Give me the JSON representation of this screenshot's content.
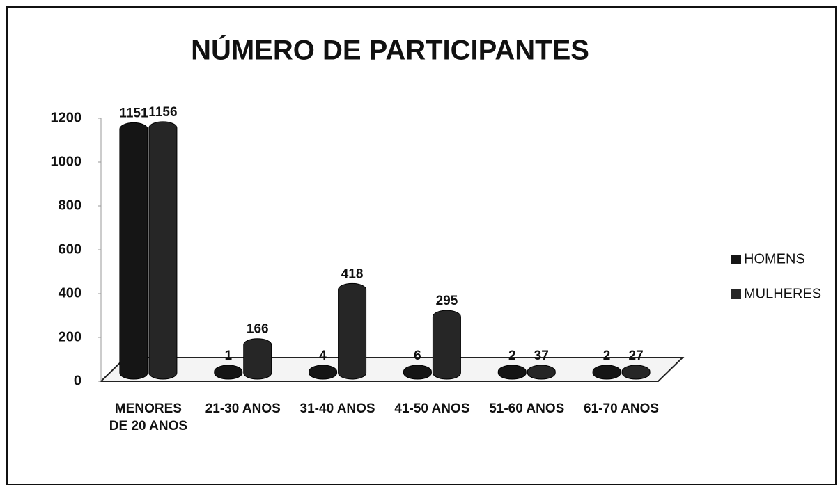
{
  "chart_data": {
    "type": "bar",
    "title": "NÚMERO DE PARTICIPANTES",
    "categories": [
      "MENORES DE 20 ANOS",
      "21-30 ANOS",
      "31-40 ANOS",
      "41-50 ANOS",
      "51-60 ANOS",
      "61-70 ANOS"
    ],
    "series": [
      {
        "name": "HOMENS",
        "color": "#151515",
        "values": [
          1151,
          1,
          4,
          6,
          2,
          2
        ]
      },
      {
        "name": "MULHERES",
        "color": "#262626",
        "values": [
          1156,
          166,
          418,
          295,
          37,
          27
        ]
      }
    ],
    "ylim": [
      0,
      1200
    ],
    "yticks": [
      0,
      200,
      400,
      600,
      800,
      1000,
      1200
    ],
    "grid": false,
    "legend": "right"
  }
}
